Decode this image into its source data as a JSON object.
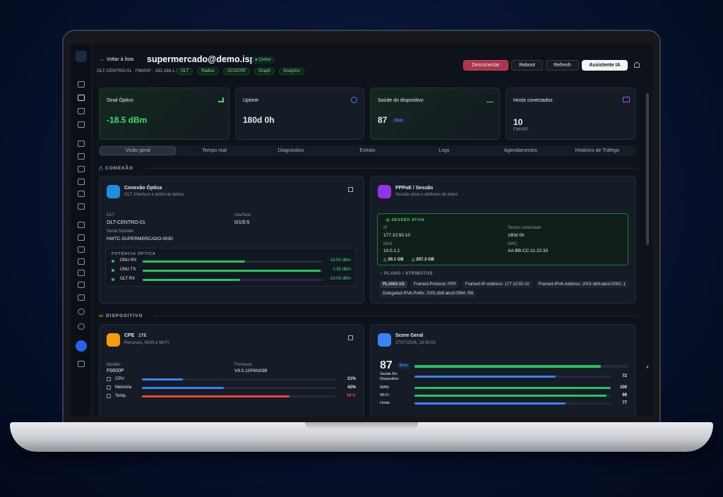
{
  "header": {
    "back": "Voltar à lista",
    "title": "supermercado@demo.isp",
    "status": "Online",
    "subtitle": "OLT-CENTRO-01 · F6600P · 192.168.1.1",
    "tags": [
      "OLT",
      "Radius",
      "ACS/CPE",
      "Graph",
      "Analytics"
    ],
    "actions": [
      "Desconectar",
      "Reboot",
      "Refresh",
      "Assistente IA"
    ]
  },
  "cards": [
    {
      "label": "Sinal Óptico",
      "value": "-18.5 dBm"
    },
    {
      "label": "Uptime",
      "value": "180d 0h"
    },
    {
      "label": "Saúde do dispositivo",
      "value": "87",
      "badge": "Bom"
    },
    {
      "label": "Hosts conectados",
      "value": "10",
      "sub": "F6600P"
    }
  ],
  "tabs": [
    "Visão geral",
    "Tempo real",
    "Diagnóstico",
    "Extrato",
    "Logs",
    "Agendamentos",
    "Histórico de Tráfego"
  ],
  "sections": {
    "conexao": "CONEXÃO",
    "dispositivo": "DISPOSITIVO"
  },
  "optical": {
    "title": "Conexão Óptica",
    "subtitle": "OLT, interface e potência óptica",
    "fields": [
      {
        "label": "OLT",
        "value": "OLT-CENTRO-01"
      },
      {
        "label": "Interface",
        "value": "0/1/0:5"
      },
      {
        "label": "Serial Number",
        "value": "HWTC-SUPERMERCADO-0030"
      }
    ],
    "power_title": "POTÊNCIA ÓPTICA",
    "power": [
      {
        "label": "ONU RX",
        "value": "-18.50 dBm"
      },
      {
        "label": "ONU TX",
        "value": "2.55 dBm"
      },
      {
        "label": "OLT RX",
        "value": "-19.00 dBm"
      }
    ]
  },
  "pppoe": {
    "title": "PPPoE / Sessão",
    "subtitle": "Sessão ativa e atributos do plano",
    "session_title": "SESSÃO ATIVA",
    "fields": [
      {
        "label": "IP",
        "value": "177.10.50.10"
      },
      {
        "label": "Tempo conectado",
        "value": "180d 0h"
      },
      {
        "label": "NAS",
        "value": "10.0.1.1"
      },
      {
        "label": "MAC",
        "value": "AA:BB:CC:11:22:33"
      }
    ],
    "download": "30.1 GB",
    "upload": "257.3 GB",
    "plan_title": "PLANO / ATRIBUTOS",
    "attributes": [
      "PLANO-1G",
      "Framed-Protocol: PPP",
      "Framed-IP-Address: 177.10.50.10",
      "Framed-IPv6-Address: 2001:db8:abcd:0001::1",
      "Delegated-IPv6-Prefix: 2001:db8:abcd:0064::/56"
    ]
  },
  "cpe": {
    "title": "CPE",
    "vendor": "ZTE",
    "subtitle": "Recursos, WAN e Wi-Fi",
    "fields": [
      {
        "label": "Modelo",
        "value": "F6600P"
      },
      {
        "label": "Firmware",
        "value": "V9.0.10P6N33B"
      }
    ],
    "resources": [
      {
        "label": "CPU",
        "value": 21,
        "value_label": "21%"
      },
      {
        "label": "Memória",
        "value": 42,
        "value_label": "42%"
      },
      {
        "label": "Temp.",
        "value": 76,
        "value_label": "76°C"
      }
    ]
  },
  "score": {
    "title": "Score Geral",
    "date": "27/07/2026, 18:05:03",
    "value": 87,
    "badge": "Bom",
    "items": [
      {
        "label": "Saúde Do Dispositivo",
        "value": 72
      },
      {
        "label": "WAN",
        "value": 100
      },
      {
        "label": "Wi-Fi",
        "value": 98
      },
      {
        "label": "Hosts",
        "value": 77
      }
    ]
  }
}
